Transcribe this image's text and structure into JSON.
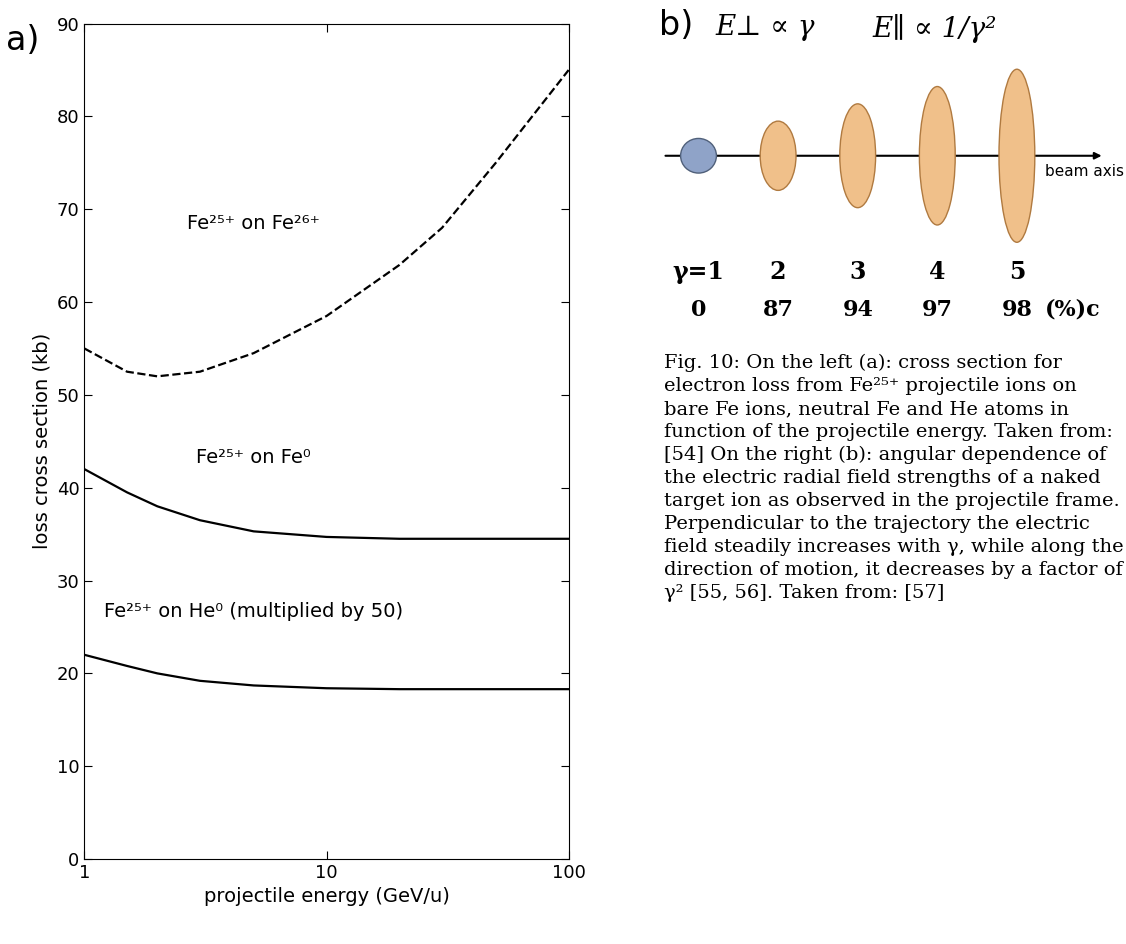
{
  "chart_data": {
    "type": "line",
    "panel_label": "a)",
    "xlabel": "projectile energy (GeV/u)",
    "ylabel": "loss cross section (kb)",
    "log": "x",
    "x": [
      1,
      1.5,
      2,
      3,
      5,
      10,
      20,
      30,
      50,
      100
    ],
    "xlim": [
      1,
      100
    ],
    "xticks": [
      1,
      10,
      100
    ],
    "ylim": [
      0,
      90
    ],
    "yticks": [
      0,
      10,
      20,
      30,
      40,
      50,
      60,
      70,
      80,
      90
    ],
    "series": [
      {
        "name": "Fe²⁵⁺ on Fe²⁶⁺",
        "color": "#000000",
        "line_style": "dashed",
        "values": [
          55,
          52.5,
          52,
          52.5,
          54.5,
          58.5,
          64,
          68,
          75,
          85
        ]
      },
      {
        "name": "Fe²⁵⁺ on Fe⁰",
        "color": "#000000",
        "line_style": "solid",
        "values": [
          42,
          39.5,
          38,
          36.5,
          35.3,
          34.7,
          34.5,
          34.5,
          34.5,
          34.5
        ]
      },
      {
        "name": "Fe²⁵⁺ on He⁰ (multiplied by 50)",
        "color": "#000000",
        "line_style": "solid",
        "values": [
          22,
          20.8,
          20,
          19.2,
          18.7,
          18.4,
          18.3,
          18.3,
          18.3,
          18.3
        ]
      }
    ]
  },
  "panel_b": {
    "panel_label": "b)",
    "formula_perp": "E⊥ ∝ γ",
    "formula_par": "E∥ ∝ 1/γ²",
    "axis_label": "beam axis",
    "gamma": [
      1,
      2,
      3,
      4,
      5
    ],
    "gamma_labels": [
      "γ=1",
      "2",
      "3",
      "4",
      "5"
    ],
    "speed_percent_c": [
      0,
      87,
      94,
      97,
      98
    ],
    "speed_unit": "(%)c"
  },
  "caption": "Fig. 10: On the left (a): cross section for electron loss from Fe²⁵⁺ projectile ions on bare Fe ions, neutral Fe and He atoms in function of the projectile energy. Taken from: [54] On the right (b): angular dependence of the electric radial field strengths of a naked target ion as observed in the projectile frame. Perpendicular to the trajectory the electric field steadily increases with γ, while along the direction of motion, it decreases by a factor of γ² [55, 56]. Taken from: [57]"
}
